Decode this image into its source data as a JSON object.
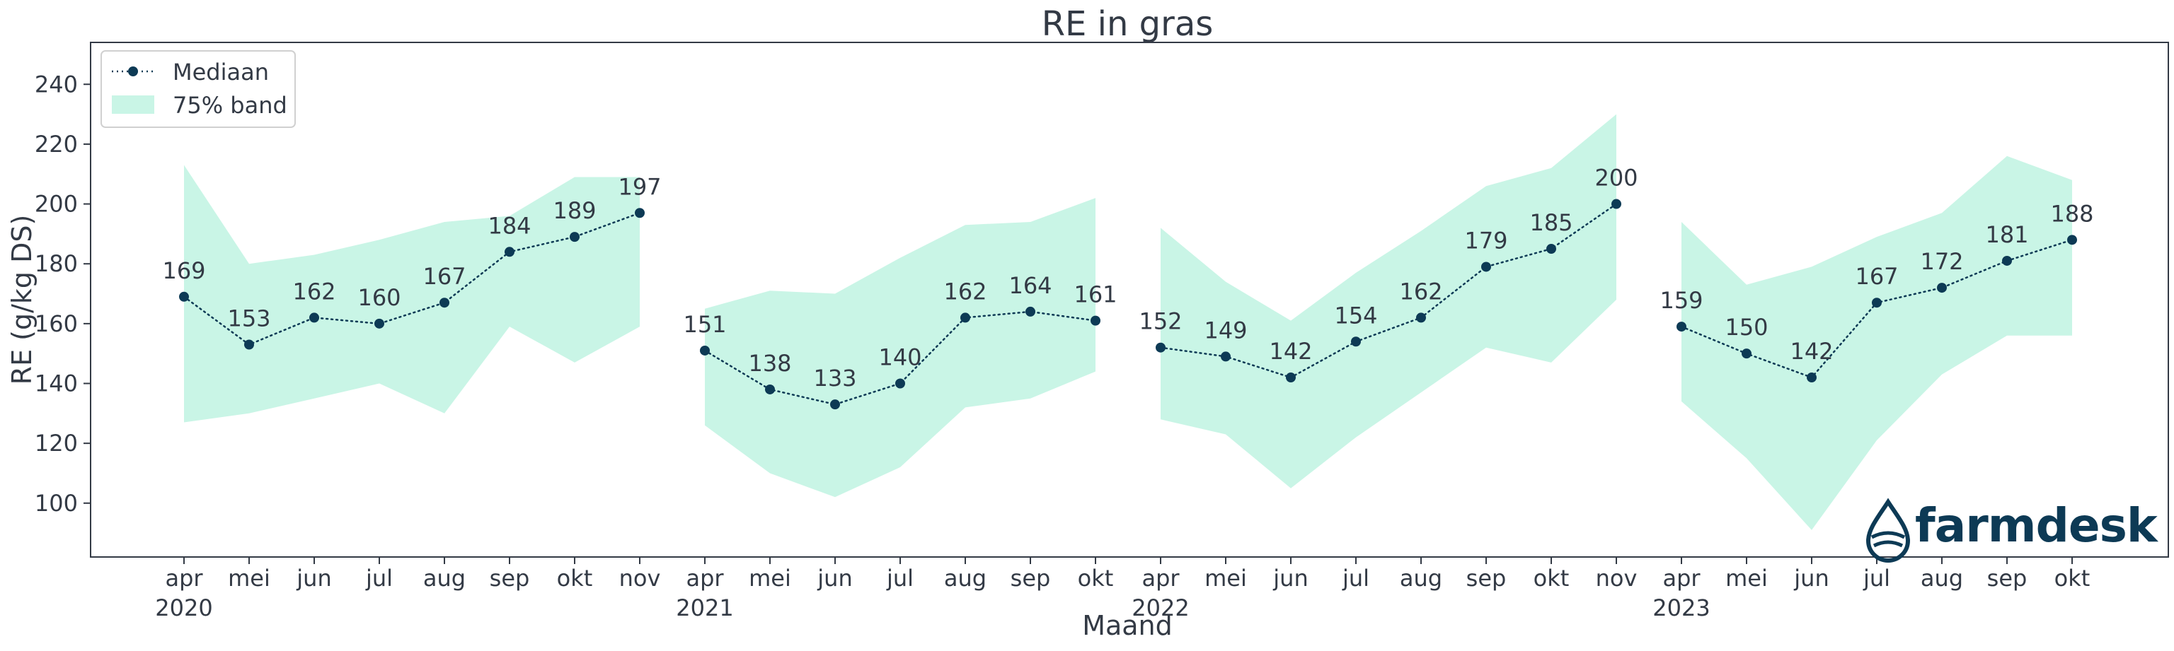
{
  "chart_data": {
    "type": "line",
    "title": "RE in gras",
    "xlabel": "Maand",
    "ylabel": "RE (g/kg DS)",
    "ylim": [
      82,
      254
    ],
    "yticks": [
      100,
      120,
      140,
      160,
      180,
      200,
      220,
      240
    ],
    "legend_position": "top-left",
    "grid": false,
    "colors": {
      "line": "#0d3a55",
      "band": "#c9f5e6",
      "text": "#333a45"
    },
    "series": [
      {
        "name": "Mediaan",
        "kind": "line-dotted-markers"
      },
      {
        "name": "75% band",
        "kind": "band"
      }
    ],
    "seasons": [
      {
        "year": "2020",
        "months": [
          "apr",
          "mei",
          "jun",
          "jul",
          "aug",
          "sep",
          "okt",
          "nov"
        ],
        "median": [
          169,
          153,
          162,
          160,
          167,
          184,
          189,
          197
        ],
        "band_low": [
          127,
          130,
          135,
          140,
          130,
          159,
          147,
          159
        ],
        "band_high": [
          213,
          180,
          183,
          188,
          194,
          196,
          209,
          209
        ]
      },
      {
        "year": "2021",
        "months": [
          "apr",
          "mei",
          "jun",
          "jul",
          "aug",
          "sep",
          "okt"
        ],
        "median": [
          151,
          138,
          133,
          140,
          162,
          164,
          161
        ],
        "band_low": [
          126,
          110,
          102,
          112,
          132,
          135,
          144
        ],
        "band_high": [
          165,
          171,
          170,
          182,
          193,
          194,
          202
        ]
      },
      {
        "year": "2022",
        "months": [
          "apr",
          "mei",
          "jun",
          "jul",
          "aug",
          "sep",
          "okt",
          "nov"
        ],
        "median": [
          152,
          149,
          142,
          154,
          162,
          179,
          185,
          200
        ],
        "band_low": [
          128,
          123,
          105,
          122,
          137,
          152,
          147,
          168
        ],
        "band_high": [
          192,
          174,
          161,
          177,
          191,
          206,
          212,
          230
        ]
      },
      {
        "year": "2023",
        "months": [
          "apr",
          "mei",
          "jun",
          "jul",
          "aug",
          "sep",
          "okt"
        ],
        "median": [
          159,
          150,
          142,
          167,
          172,
          181,
          188
        ],
        "band_low": [
          134,
          115,
          91,
          121,
          143,
          156,
          156
        ],
        "band_high": [
          194,
          173,
          179,
          189,
          197,
          216,
          208
        ]
      }
    ]
  },
  "logo": {
    "text": "farmdesk",
    "icon": "water-drop-icon"
  }
}
